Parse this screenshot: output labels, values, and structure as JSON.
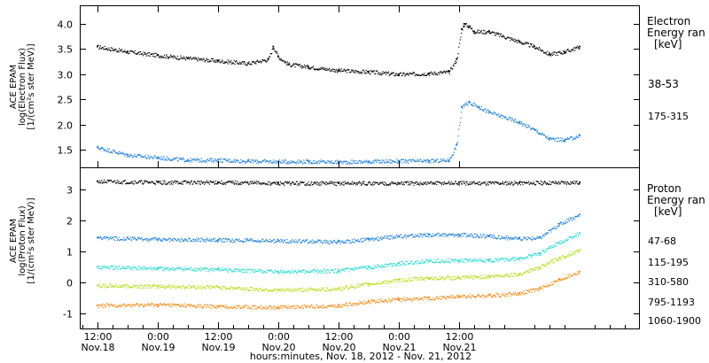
{
  "chart_data": [
    {
      "type": "scatter",
      "ylabel": [
        "ACE EPAM",
        "log(Electron Flux)",
        "[1/(cm²s ster MeV)]"
      ],
      "legend_title": [
        "Electron",
        "Energy ran",
        "[keV]"
      ],
      "ylim": [
        1.15,
        4.35
      ],
      "yticks": [
        "1.5",
        "2.0",
        "2.5",
        "3.0",
        "3.5",
        "4.0"
      ],
      "yticks_values": [
        1.5,
        2.0,
        2.5,
        3.0,
        3.5,
        4.0
      ],
      "series": [
        {
          "name": "38-53",
          "color": "#000000",
          "x": [
            -12,
            -6,
            0,
            6,
            12,
            18,
            22,
            23,
            24,
            26,
            30,
            36,
            42,
            48,
            54,
            58,
            59.5,
            60.5,
            61,
            62,
            63,
            66,
            72,
            75,
            78,
            81,
            84
          ],
          "y": [
            3.55,
            3.45,
            3.38,
            3.32,
            3.27,
            3.22,
            3.3,
            3.55,
            3.35,
            3.2,
            3.15,
            3.08,
            3.05,
            3.0,
            3.02,
            3.05,
            3.3,
            3.9,
            4.0,
            3.95,
            3.85,
            3.85,
            3.65,
            3.55,
            3.4,
            3.45,
            3.55
          ]
        },
        {
          "name": "175-315",
          "color": "#1f7fd8",
          "x": [
            -12,
            -6,
            0,
            6,
            12,
            18,
            24,
            30,
            36,
            42,
            48,
            54,
            58,
            59.5,
            60.5,
            62,
            64,
            66,
            72,
            75,
            78,
            81,
            84
          ],
          "y": [
            1.55,
            1.4,
            1.35,
            1.3,
            1.3,
            1.28,
            1.27,
            1.27,
            1.26,
            1.27,
            1.28,
            1.28,
            1.3,
            1.6,
            2.35,
            2.45,
            2.35,
            2.25,
            2.05,
            1.9,
            1.72,
            1.7,
            1.78
          ]
        }
      ]
    },
    {
      "type": "scatter",
      "ylabel": [
        "ACE EPAM",
        "log(Proton Flux)",
        "[1/(cm²s ster MeV)]"
      ],
      "legend_title": [
        "Proton",
        "Energy ran",
        "[keV]"
      ],
      "ylim": [
        -1.5,
        3.7
      ],
      "yticks": [
        "-1",
        "0",
        "1",
        "2",
        "3"
      ],
      "yticks_values": [
        -1,
        0,
        1,
        2,
        3
      ],
      "series": [
        {
          "name": "47-68",
          "color": "#000000",
          "x": [
            -12,
            0,
            12,
            24,
            36,
            48,
            60,
            72,
            84
          ],
          "y": [
            3.28,
            3.25,
            3.25,
            3.22,
            3.22,
            3.22,
            3.23,
            3.23,
            3.25
          ]
        },
        {
          "name": "115-195",
          "color": "#1f7fd8",
          "x": [
            -12,
            0,
            12,
            24,
            36,
            42,
            48,
            54,
            60,
            66,
            72,
            76,
            80,
            84
          ],
          "y": [
            1.45,
            1.4,
            1.38,
            1.35,
            1.32,
            1.4,
            1.5,
            1.55,
            1.55,
            1.5,
            1.42,
            1.45,
            1.9,
            2.2
          ]
        },
        {
          "name": "310-580",
          "color": "#2ad8d0",
          "x": [
            -12,
            0,
            12,
            24,
            36,
            42,
            48,
            54,
            60,
            66,
            72,
            76,
            80,
            84
          ],
          "y": [
            0.5,
            0.45,
            0.42,
            0.35,
            0.38,
            0.5,
            0.62,
            0.7,
            0.72,
            0.72,
            0.78,
            0.95,
            1.3,
            1.6
          ]
        },
        {
          "name": "795-1193",
          "color": "#b8dc20",
          "x": [
            -12,
            0,
            12,
            24,
            36,
            42,
            48,
            54,
            60,
            66,
            72,
            76,
            80,
            84
          ],
          "y": [
            -0.1,
            -0.12,
            -0.15,
            -0.25,
            -0.2,
            -0.05,
            0.08,
            0.15,
            0.15,
            0.2,
            0.28,
            0.5,
            0.8,
            1.05
          ]
        },
        {
          "name": "1060-1900",
          "color": "#f08c1a",
          "x": [
            -12,
            0,
            12,
            24,
            36,
            42,
            48,
            54,
            60,
            66,
            72,
            76,
            80,
            84
          ],
          "y": [
            -0.75,
            -0.72,
            -0.78,
            -0.8,
            -0.75,
            -0.62,
            -0.55,
            -0.5,
            -0.45,
            -0.42,
            -0.35,
            -0.2,
            0.1,
            0.35
          ]
        }
      ]
    }
  ],
  "x_axis": {
    "title": "hours:minutes, Nov. 18, 2012 - Nov. 21, 2012",
    "xlim": [
      -15.5,
      96
    ],
    "ticks": [
      {
        "hour": -12,
        "time": "12:00",
        "date": "Nov.18"
      },
      {
        "hour": 0,
        "time": "0:00",
        "date": "Nov.19"
      },
      {
        "hour": 12,
        "time": "12:00",
        "date": "Nov.19"
      },
      {
        "hour": 24,
        "time": "0:00",
        "date": "Nov.20"
      },
      {
        "hour": 36,
        "time": "12:00",
        "date": "Nov.20"
      },
      {
        "hour": 48,
        "time": "0:00",
        "date": "Nov.21"
      },
      {
        "hour": 60,
        "time": "12:00",
        "date": "Nov.21"
      }
    ]
  }
}
